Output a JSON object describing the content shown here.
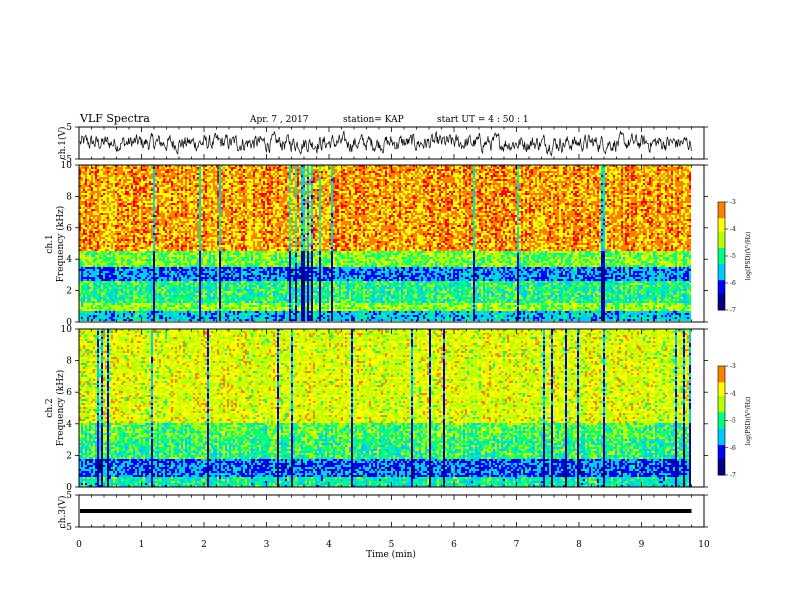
{
  "header": {
    "title": "VLF Spectra",
    "date": "Apr. 7 , 2017",
    "station": "station= KAP",
    "start": "start  UT =   4 : 50 : 1"
  },
  "chart_data": [
    {
      "type": "line",
      "panel": "ch.1 time series",
      "ylabel": "ch.1(V)",
      "ylim": [
        -5,
        5
      ],
      "yticks": [
        "5",
        "-5"
      ],
      "xlim": [
        0,
        10
      ],
      "description_series": "noisy waveform oscillating roughly between -3 and 3 V",
      "series": [
        {
          "values_range": [
            -3,
            3
          ]
        }
      ]
    },
    {
      "type": "heatmap",
      "panel": "ch.1 spectrogram",
      "ylabel": "ch.1\nFrequency (kHz)",
      "ylabel_lines": [
        "ch.1",
        "Frequency (kHz)"
      ],
      "ylim": [
        0,
        10
      ],
      "yticks": [
        "0",
        "2",
        "4",
        "6",
        "8",
        "10"
      ],
      "xlim": [
        0,
        10
      ],
      "data_end_min": 9.8,
      "colorbar": {
        "label": "log(PSD)(V²/Hz)",
        "range": [
          -7,
          -3
        ],
        "ticks": [
          "-3",
          "-4",
          "-5",
          "-6",
          "-7"
        ]
      },
      "bands": [
        {
          "from_khz": 0.0,
          "to_khz": 0.6,
          "level": -5.5
        },
        {
          "from_khz": 0.6,
          "to_khz": 1.2,
          "level": -4.5
        },
        {
          "from_khz": 1.2,
          "to_khz": 2.6,
          "level": -5.0
        },
        {
          "from_khz": 2.6,
          "to_khz": 3.4,
          "level": -5.8
        },
        {
          "from_khz": 3.4,
          "to_khz": 4.5,
          "level": -4.6
        },
        {
          "from_khz": 4.5,
          "to_khz": 10.0,
          "level": -3.4
        }
      ]
    },
    {
      "type": "heatmap",
      "panel": "ch.2 spectrogram",
      "ylabel": "ch.2\nFrequency (kHz)",
      "ylabel_lines": [
        "ch.2",
        "Frequency (kHz)"
      ],
      "ylim": [
        0,
        10
      ],
      "yticks": [
        "0",
        "2",
        "4",
        "6",
        "8",
        "10"
      ],
      "xlim": [
        0,
        10
      ],
      "data_end_min": 9.8,
      "colorbar": {
        "label": "log(PSD)(V²/Hz)",
        "range": [
          -7,
          -3
        ],
        "ticks": [
          "-3",
          "-4",
          "-5",
          "-6",
          "-7"
        ]
      },
      "bands": [
        {
          "from_khz": 0.0,
          "to_khz": 0.6,
          "level": -5.2
        },
        {
          "from_khz": 0.6,
          "to_khz": 1.8,
          "level": -5.9
        },
        {
          "from_khz": 1.8,
          "to_khz": 3.0,
          "level": -5.0
        },
        {
          "from_khz": 3.0,
          "to_khz": 4.0,
          "level": -4.8
        },
        {
          "from_khz": 4.0,
          "to_khz": 10.0,
          "level": -4.1
        }
      ]
    },
    {
      "type": "line",
      "panel": "ch.3 time series",
      "ylabel": "ch.3(V)",
      "ylim": [
        -5,
        5
      ],
      "yticks": [
        "5",
        "-5"
      ],
      "xlim": [
        0,
        10
      ],
      "xlabel": "Time (min)",
      "xticks": [
        "0",
        "1",
        "2",
        "3",
        "4",
        "5",
        "6",
        "7",
        "8",
        "9",
        "10"
      ],
      "series": [
        {
          "values_range": [
            -0.3,
            0.3
          ],
          "constant_value": 0
        }
      ]
    }
  ],
  "colors": {
    "colormap": [
      "#000080",
      "#0000ff",
      "#00c8ff",
      "#00ff80",
      "#b4ff00",
      "#ffff00",
      "#ff8000",
      "#ff0000",
      "#ffffff"
    ],
    "ink": "#000000"
  }
}
